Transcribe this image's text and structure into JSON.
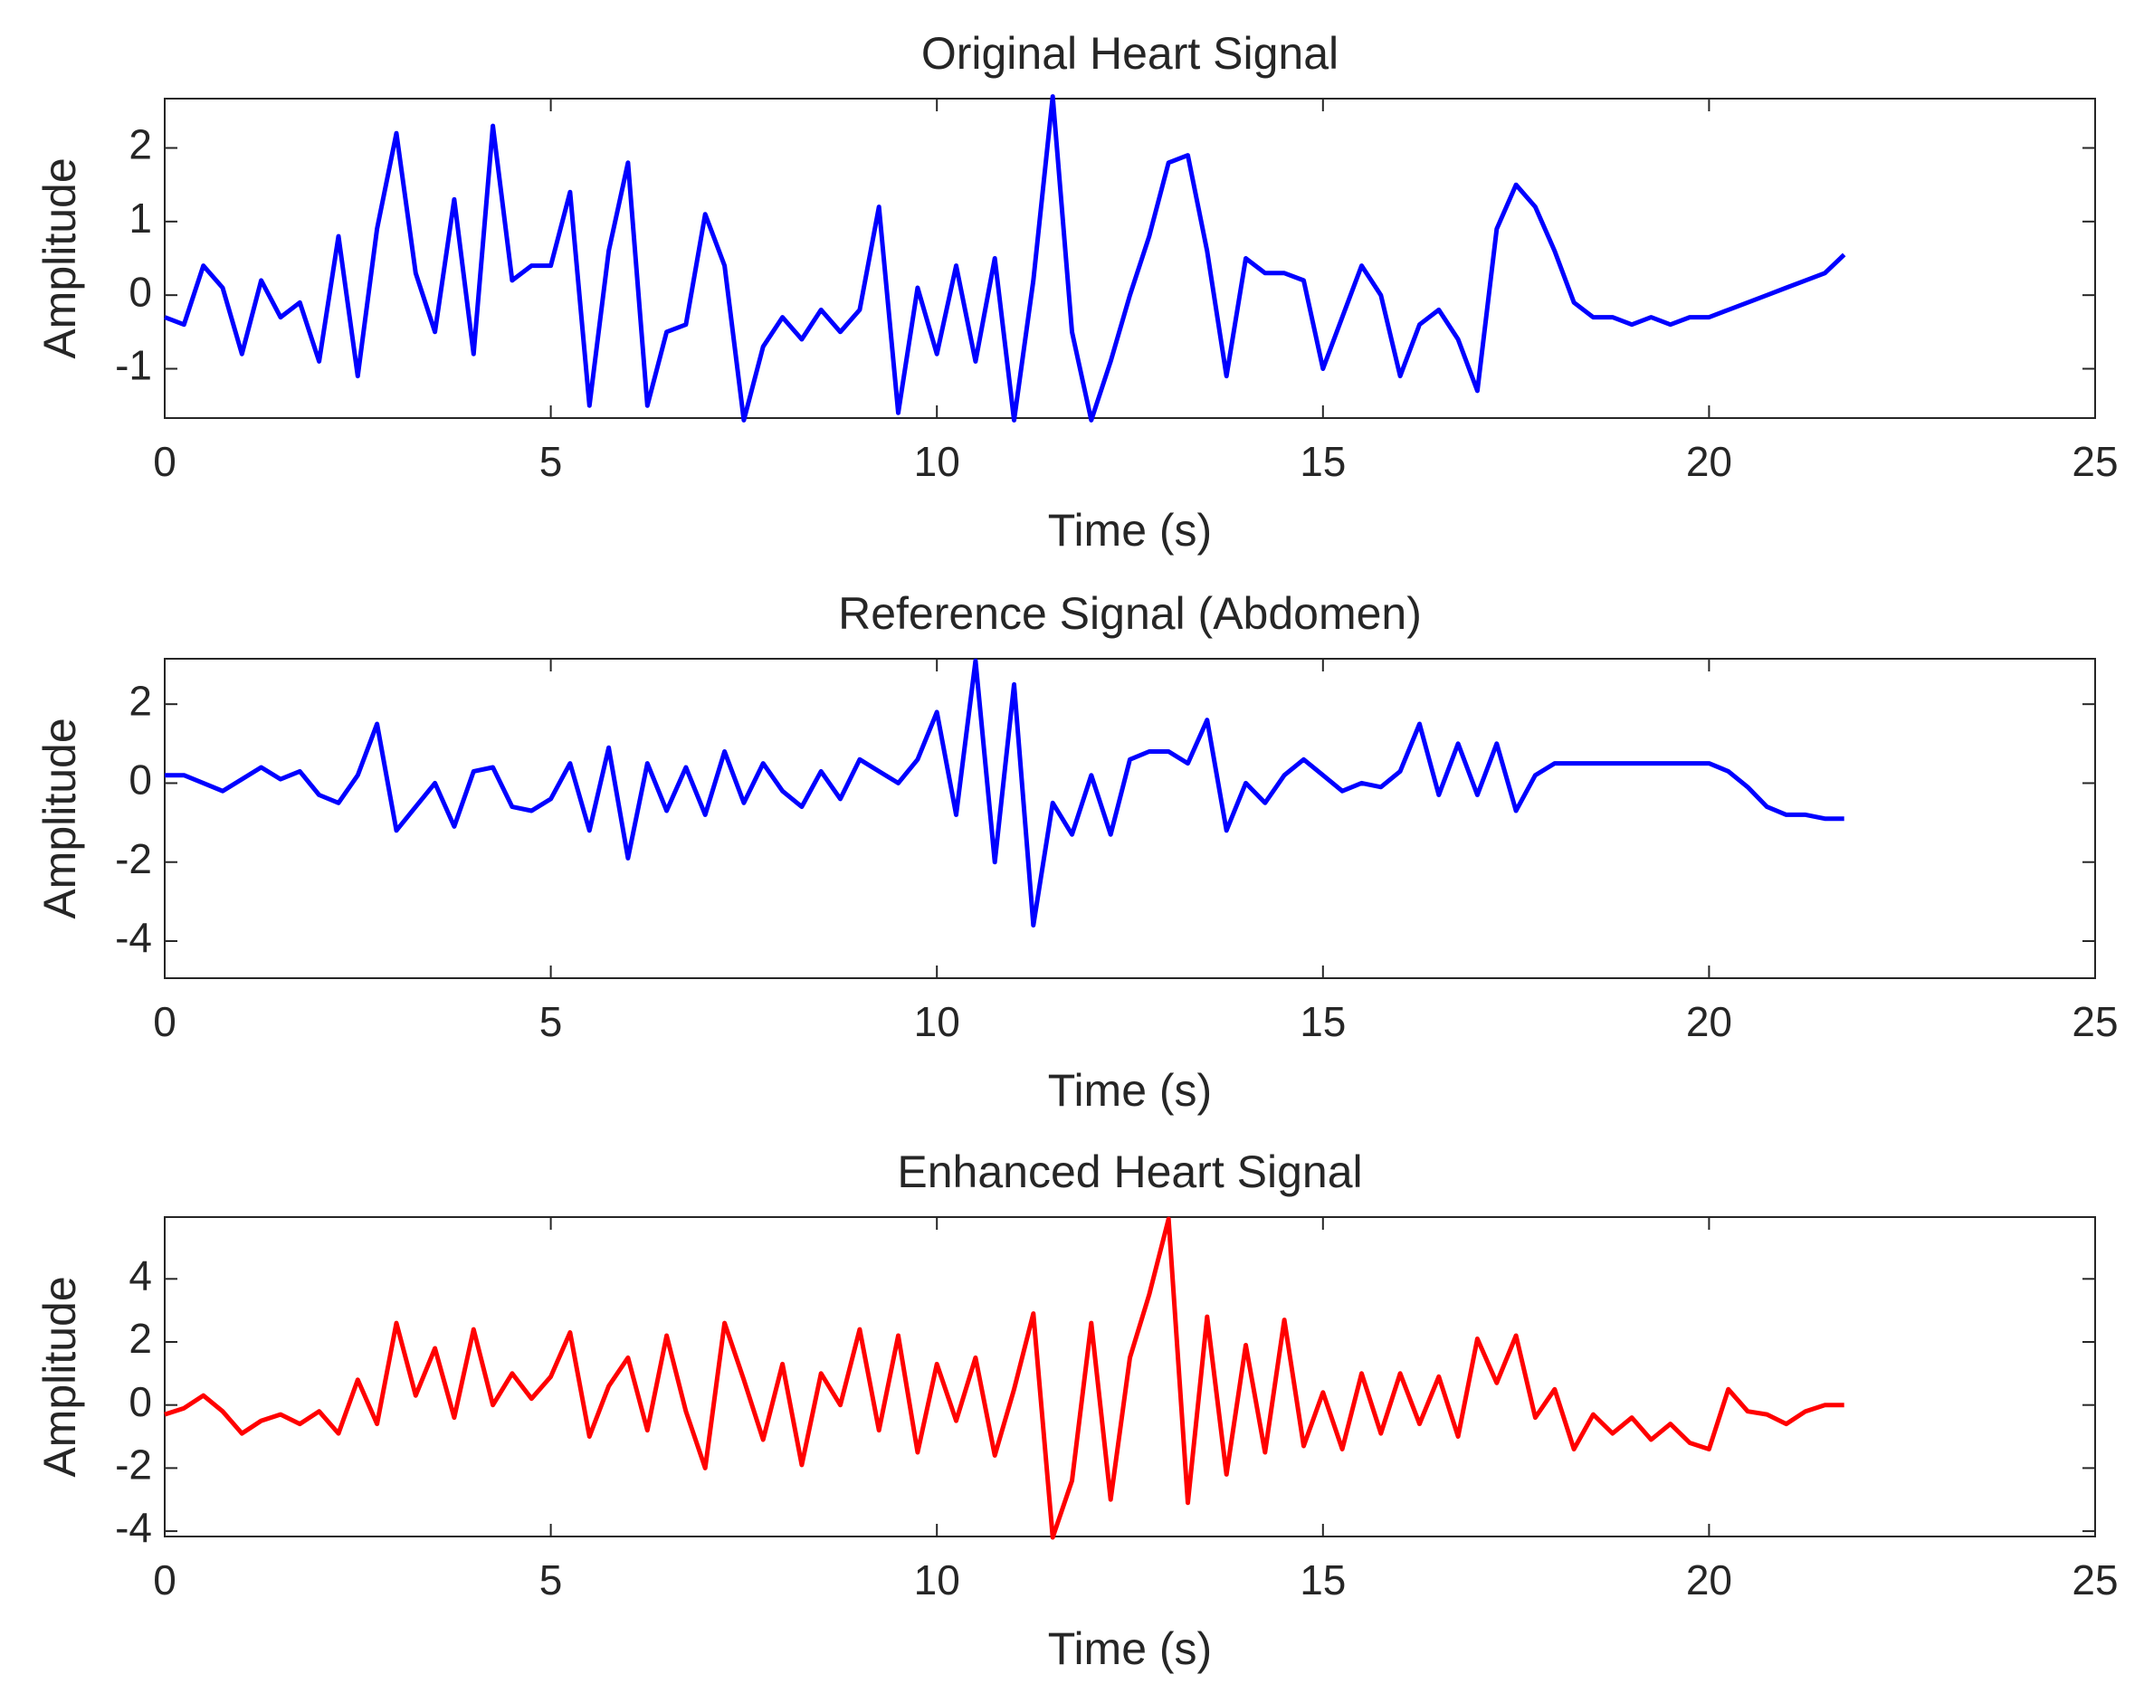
{
  "chart_data": [
    {
      "type": "line",
      "title": "Original Heart Signal",
      "xlabel": "Time (s)",
      "ylabel": "Amplitude",
      "x": [
        0,
        0.25,
        0.5,
        0.75,
        1,
        1.25,
        1.5,
        1.75,
        2,
        2.25,
        2.5,
        2.75,
        3,
        3.25,
        3.5,
        3.75,
        4,
        4.25,
        4.5,
        4.75,
        5,
        5.25,
        5.5,
        5.75,
        6,
        6.25,
        6.5,
        6.75,
        7,
        7.25,
        7.5,
        7.75,
        8,
        8.25,
        8.5,
        8.75,
        9,
        9.25,
        9.5,
        9.75,
        10,
        10.25,
        10.5,
        10.75,
        11,
        11.25,
        11.5,
        11.75,
        12,
        12.25,
        12.5,
        12.75,
        13,
        13.25,
        13.5,
        13.75,
        14,
        14.25,
        14.5,
        14.75,
        15,
        15.25,
        15.5,
        15.75,
        16,
        16.25,
        16.5,
        16.75,
        17,
        17.25,
        17.5,
        17.75,
        18,
        18.25,
        18.5,
        18.75,
        19,
        19.25,
        19.5,
        19.75,
        20,
        20.25,
        20.5,
        20.75,
        21,
        21.25,
        21.5,
        21.75
      ],
      "values": [
        -0.3,
        -0.4,
        0.4,
        0.1,
        -0.8,
        0.2,
        -0.3,
        -0.1,
        -0.9,
        0.8,
        -1.1,
        0.9,
        2.2,
        0.3,
        -0.5,
        1.3,
        -0.8,
        2.3,
        0.2,
        0.4,
        0.4,
        1.4,
        -1.5,
        0.6,
        1.8,
        -1.5,
        -0.5,
        -0.4,
        1.1,
        0.4,
        -1.7,
        -0.7,
        -0.3,
        -0.6,
        -0.2,
        -0.5,
        -0.2,
        1.2,
        -1.6,
        0.1,
        -0.8,
        0.4,
        -0.9,
        0.5,
        -1.7,
        0.2,
        2.7,
        -0.5,
        -1.7,
        -0.9,
        0.0,
        0.8,
        1.8,
        1.9,
        0.6,
        -1.1,
        0.5,
        0.3,
        0.3,
        0.2,
        -1.0,
        -0.3,
        0.4,
        0.0,
        -1.1,
        -0.4,
        -0.2,
        -0.6,
        -1.3,
        0.9,
        1.5,
        1.2,
        0.6,
        -0.1,
        -0.3,
        -0.3,
        -0.4,
        -0.3,
        -0.4,
        -0.3,
        -0.3,
        -0.2,
        -0.1,
        0.0,
        0.1,
        0.2,
        0.3,
        0.55
      ],
      "color": "#0000ff",
      "xlim": [
        0,
        25
      ],
      "xticks": [
        0,
        5,
        10,
        15,
        20,
        25
      ],
      "ylim": [
        -1.67,
        2.67
      ],
      "yticks": [
        -1,
        0,
        1,
        2
      ]
    },
    {
      "type": "line",
      "title": "Reference Signal (Abdomen)",
      "xlabel": "Time (s)",
      "ylabel": "Amplitude",
      "x": [
        0,
        0.25,
        0.5,
        0.75,
        1,
        1.25,
        1.5,
        1.75,
        2,
        2.25,
        2.5,
        2.75,
        3,
        3.25,
        3.5,
        3.75,
        4,
        4.25,
        4.5,
        4.75,
        5,
        5.25,
        5.5,
        5.75,
        6,
        6.25,
        6.5,
        6.75,
        7,
        7.25,
        7.5,
        7.75,
        8,
        8.25,
        8.5,
        8.75,
        9,
        9.25,
        9.5,
        9.75,
        10,
        10.25,
        10.5,
        10.75,
        11,
        11.25,
        11.5,
        11.75,
        12,
        12.25,
        12.5,
        12.75,
        13,
        13.25,
        13.5,
        13.75,
        14,
        14.25,
        14.5,
        14.75,
        15,
        15.25,
        15.5,
        15.75,
        16,
        16.25,
        16.5,
        16.75,
        17,
        17.25,
        17.5,
        17.75,
        18,
        18.25,
        18.5,
        18.75,
        19,
        19.25,
        19.5,
        19.75,
        20,
        20.25,
        20.5,
        20.75,
        21,
        21.25,
        21.5,
        21.75
      ],
      "values": [
        0.2,
        0.2,
        0.0,
        -0.2,
        0.1,
        0.4,
        0.1,
        0.3,
        -0.3,
        -0.5,
        0.2,
        1.5,
        -1.2,
        -0.6,
        0.0,
        -1.1,
        0.3,
        0.4,
        -0.6,
        -0.7,
        -0.4,
        0.5,
        -1.2,
        0.9,
        -1.9,
        0.5,
        -0.7,
        0.4,
        -0.8,
        0.8,
        -0.5,
        0.5,
        -0.2,
        -0.6,
        0.3,
        -0.4,
        0.6,
        0.3,
        0.0,
        0.6,
        1.8,
        -0.8,
        3.1,
        -2.0,
        2.5,
        -3.6,
        -0.5,
        -1.3,
        0.2,
        -1.3,
        0.6,
        0.8,
        0.8,
        0.5,
        1.6,
        -1.2,
        0.0,
        -0.5,
        0.2,
        0.6,
        0.2,
        -0.2,
        0.0,
        -0.1,
        0.3,
        1.5,
        -0.3,
        1.0,
        -0.3,
        1.0,
        -0.7,
        0.2,
        0.5,
        0.5,
        0.5,
        0.5,
        0.5,
        0.5,
        0.5,
        0.5,
        0.5,
        0.3,
        -0.1,
        -0.6,
        -0.8,
        -0.8,
        -0.9,
        -0.9
      ],
      "color": "#0000ff",
      "xlim": [
        0,
        25
      ],
      "xticks": [
        0,
        5,
        10,
        15,
        20,
        25
      ],
      "ylim": [
        -4.94,
        3.15
      ],
      "yticks": [
        -4,
        -2,
        0,
        2
      ]
    },
    {
      "type": "line",
      "title": "Enhanced Heart Signal",
      "xlabel": "Time (s)",
      "ylabel": "Amplitude",
      "x": [
        0,
        0.25,
        0.5,
        0.75,
        1,
        1.25,
        1.5,
        1.75,
        2,
        2.25,
        2.5,
        2.75,
        3,
        3.25,
        3.5,
        3.75,
        4,
        4.25,
        4.5,
        4.75,
        5,
        5.25,
        5.5,
        5.75,
        6,
        6.25,
        6.5,
        6.75,
        7,
        7.25,
        7.5,
        7.75,
        8,
        8.25,
        8.5,
        8.75,
        9,
        9.25,
        9.5,
        9.75,
        10,
        10.25,
        10.5,
        10.75,
        11,
        11.25,
        11.5,
        11.75,
        12,
        12.25,
        12.5,
        12.75,
        13,
        13.25,
        13.5,
        13.75,
        14,
        14.25,
        14.5,
        14.75,
        15,
        15.25,
        15.5,
        15.75,
        16,
        16.25,
        16.5,
        16.75,
        17,
        17.25,
        17.5,
        17.75,
        18,
        18.25,
        18.5,
        18.75,
        19,
        19.25,
        19.5,
        19.75,
        20,
        20.25,
        20.5,
        20.75,
        21,
        21.25,
        21.5,
        21.75
      ],
      "values": [
        -0.3,
        -0.1,
        0.3,
        -0.2,
        -0.9,
        -0.5,
        -0.3,
        -0.6,
        -0.2,
        -0.9,
        0.8,
        -0.6,
        2.6,
        0.3,
        1.8,
        -0.4,
        2.4,
        0.0,
        1.0,
        0.2,
        0.9,
        2.3,
        -1.0,
        0.6,
        1.5,
        -0.8,
        2.2,
        -0.2,
        -2.0,
        2.6,
        0.8,
        -1.1,
        1.3,
        -1.9,
        1.0,
        0.0,
        2.4,
        -0.8,
        2.2,
        -1.5,
        1.3,
        -0.5,
        1.5,
        -1.6,
        0.5,
        2.9,
        -4.2,
        -2.4,
        2.6,
        -3.0,
        1.5,
        3.5,
        5.9,
        -3.1,
        2.8,
        -2.2,
        1.9,
        -1.5,
        2.7,
        -1.3,
        0.4,
        -1.4,
        1.0,
        -0.9,
        1.0,
        -0.6,
        0.9,
        -1.0,
        2.1,
        0.7,
        2.2,
        -0.4,
        0.5,
        -1.4,
        -0.3,
        -0.9,
        -0.4,
        -1.1,
        -0.6,
        -1.2,
        -1.4,
        0.5,
        -0.2,
        -0.3,
        -0.6,
        -0.2,
        0.0,
        0.0
      ],
      "color": "#ff0000",
      "xlim": [
        0,
        25
      ],
      "xticks": [
        0,
        5,
        10,
        15,
        20,
        25
      ],
      "ylim": [
        -4.17,
        5.96
      ],
      "yticks": [
        -4,
        -2,
        0,
        2,
        4
      ]
    }
  ]
}
